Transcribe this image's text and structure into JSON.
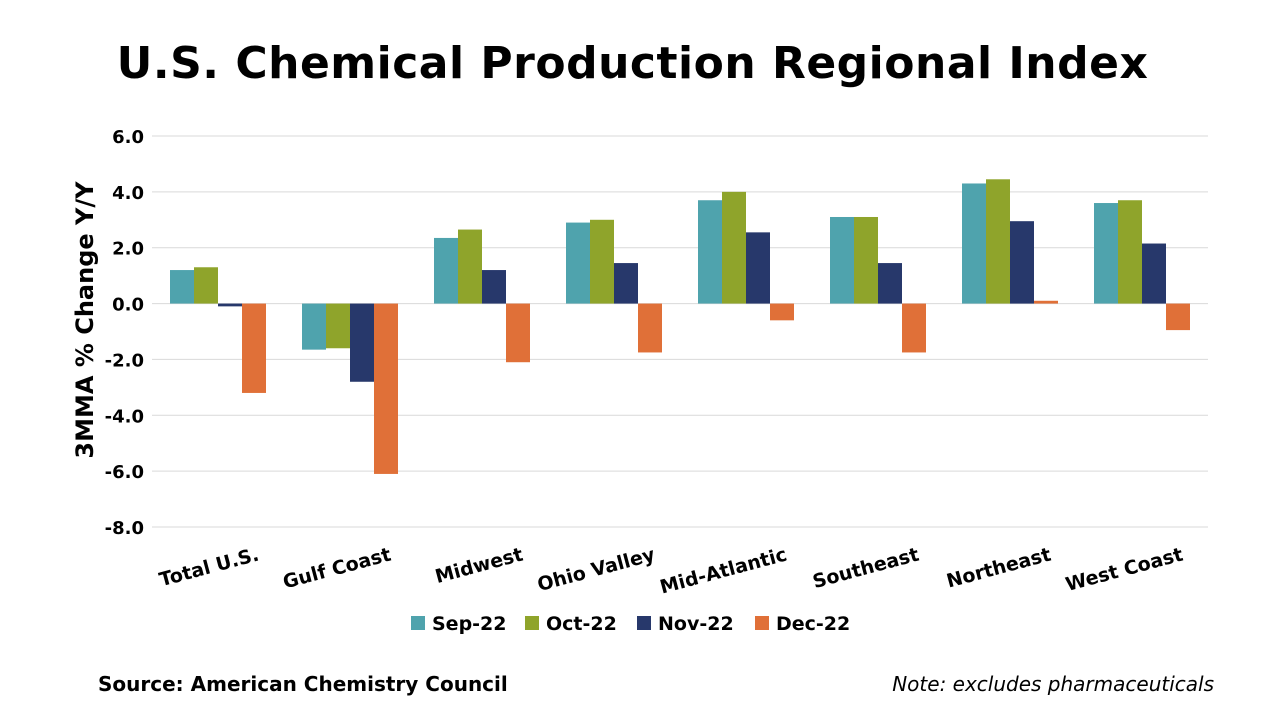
{
  "page": {
    "title": "U.S. Chemical Production Regional Index",
    "source": "Source: American Chemistry Council",
    "note": "Note: excludes pharmaceuticals"
  },
  "chart_data": {
    "type": "bar",
    "title": "U.S. Chemical Production Regional Index",
    "xlabel": "",
    "ylabel": "3MMA % Change Y/Y",
    "ylim": [
      -8.0,
      6.0
    ],
    "yticks": [
      6.0,
      4.0,
      2.0,
      0.0,
      -2.0,
      -4.0,
      -6.0,
      -8.0
    ],
    "ytick_labels": [
      "6.0",
      "4.0",
      "2.0",
      "0.0",
      "-2.0",
      "-4.0",
      "-6.0",
      "-8.0"
    ],
    "grid": true,
    "legend_position": "bottom",
    "categories": [
      "Total U.S.",
      "Gulf Coast",
      "Midwest",
      "Ohio Valley",
      "Mid-Atlantic",
      "Southeast",
      "Northeast",
      "West Coast"
    ],
    "series": [
      {
        "name": "Sep-22",
        "color": "#4fa3ad",
        "values": [
          1.2,
          -1.65,
          2.35,
          2.9,
          3.7,
          3.1,
          4.3,
          3.6
        ]
      },
      {
        "name": "Oct-22",
        "color": "#8fa42b",
        "values": [
          1.3,
          -1.6,
          2.65,
          3.0,
          4.0,
          3.1,
          4.45,
          3.7
        ]
      },
      {
        "name": "Nov-22",
        "color": "#27386b",
        "values": [
          -0.1,
          -2.8,
          1.2,
          1.45,
          2.55,
          1.45,
          2.95,
          2.15
        ]
      },
      {
        "name": "Dec-22",
        "color": "#e07038",
        "values": [
          -3.2,
          -6.1,
          -2.1,
          -1.75,
          -0.6,
          -1.75,
          0.1,
          -0.95
        ]
      }
    ]
  }
}
